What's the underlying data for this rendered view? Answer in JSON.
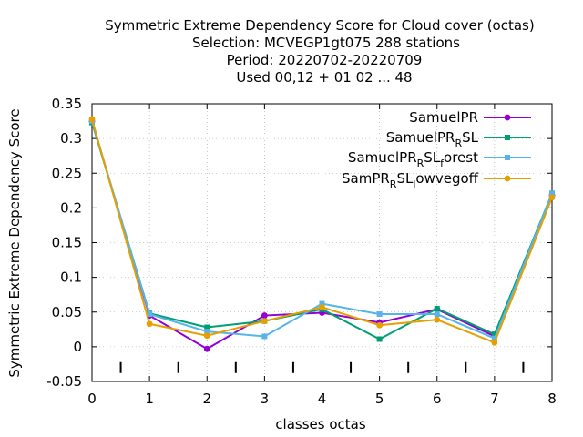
{
  "chart_data": {
    "type": "line",
    "title_lines": [
      "Symmetric Extreme Dependency Score  for Cloud cover (octas)",
      "Selection: MCVEGP1gt075    288 stations",
      "Period: 20220702-20220709",
      "Used  00,12  + 01 02 ... 48"
    ],
    "xlabel": "classes octas",
    "ylabel": "Symmetric Extreme Dependency Score",
    "xlim": [
      0,
      8
    ],
    "ylim": [
      -0.05,
      0.35
    ],
    "x_ticks": [
      0,
      1,
      2,
      3,
      4,
      5,
      6,
      7,
      8
    ],
    "y_ticks": [
      -0.05,
      0,
      0.05,
      0.1,
      0.15,
      0.2,
      0.25,
      0.3,
      0.35
    ],
    "y_tick_labels": [
      "-0.05",
      "0",
      "0.05",
      "0.1",
      "0.15",
      "0.2",
      "0.25",
      "0.3",
      "0.35"
    ],
    "grid": true,
    "legend_position": "top-right",
    "x": [
      0,
      1,
      2,
      3,
      4,
      5,
      6,
      7,
      8
    ],
    "series": [
      {
        "name": "SamuelPR",
        "name_main": "SamuelPR",
        "name_sub": "",
        "name_tail": "",
        "color": "#9400d3",
        "marker": "circle",
        "values": [
          0.325,
          0.045,
          -0.003,
          0.045,
          0.049,
          0.035,
          0.054,
          0.015,
          0.218
        ]
      },
      {
        "name": "SamuelPR_RSL",
        "name_main": "SamuelPR",
        "name_sub": "R",
        "name_tail": "SL",
        "color": "#009e73",
        "marker": "square",
        "values": [
          0.323,
          0.048,
          0.028,
          0.037,
          0.054,
          0.011,
          0.055,
          0.018,
          0.221
        ]
      },
      {
        "name": "SamuelPR_RSL_forest",
        "name_main": "SamuelPR",
        "name_sub": "R",
        "name_tail": "SL",
        "name_sub2": "f",
        "name_tail2": "orest",
        "color": "#56b4e9",
        "marker": "square",
        "values": [
          0.325,
          0.047,
          0.022,
          0.015,
          0.062,
          0.047,
          0.047,
          0.012,
          0.221
        ]
      },
      {
        "name": "SamPR_RSL_lowvegoff",
        "name_main": "SamPR",
        "name_sub": "R",
        "name_tail": "SL",
        "name_sub2": "l",
        "name_tail2": "owvegoff",
        "color": "#e69f00",
        "marker": "circle",
        "values": [
          0.328,
          0.033,
          0.016,
          0.037,
          0.057,
          0.031,
          0.039,
          0.006,
          0.215
        ]
      }
    ]
  }
}
